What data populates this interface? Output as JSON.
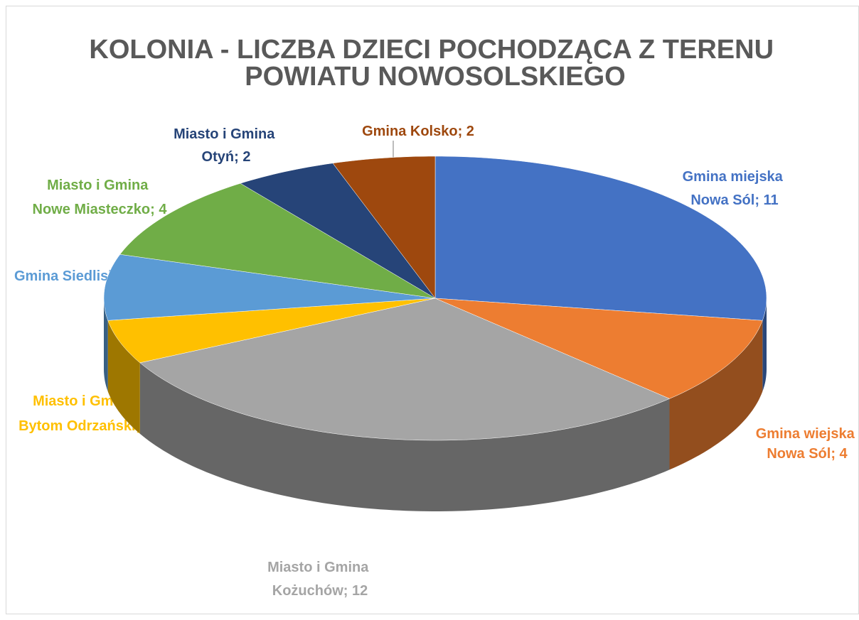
{
  "chart_data": {
    "type": "pie3d",
    "title": "KOLONIA - LICZBA  DZIECI POCHODZĄCA Z TERENU POWIATU NOWOSOLSKIEGO",
    "categories": [
      "Gmina miejska Nowa Sól",
      "Gmina wiejska Nowa Sól",
      "Miasto i Gmina Kożuchów",
      "Miasto i Gmina Bytom Odrzański",
      "Gmina Siedlisko",
      "Miasto i Gmina Nowe Miasteczko",
      "Miasto i Gmina Otyń",
      "Gmina Kolsko"
    ],
    "values": [
      11,
      4,
      12,
      2,
      3,
      4,
      2,
      2
    ],
    "value_labels": [
      "Gmina miejska Nowa Sól; 11",
      "Gmina wiejska Nowa Sól; 4",
      "Miasto i Gmina Kożuchów; 12",
      "Miasto i Gmina Bytom Odrzański; 2",
      "Gmina Siedlisko; 3",
      "Miasto i Gmina Nowe Miasteczko; 4",
      "Miasto i Gmina Otyń; 2",
      "Gmina Kolsko; 2"
    ],
    "colors": [
      "#4472c4",
      "#ed7d31",
      "#a5a5a5",
      "#ffc000",
      "#5b9bd5",
      "#70ad47",
      "#264478",
      "#9e480e"
    ]
  }
}
